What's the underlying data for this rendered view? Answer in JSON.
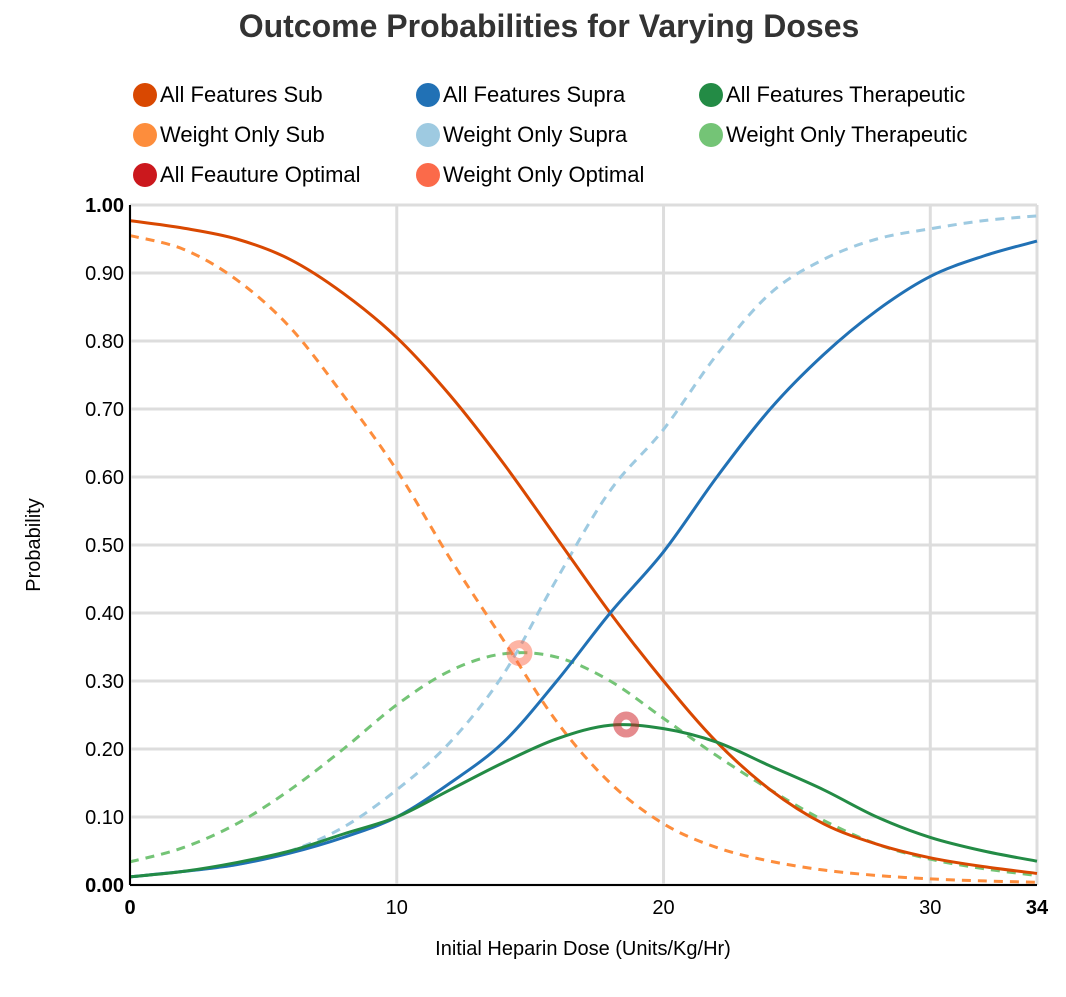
{
  "chart_data": {
    "type": "line",
    "title": "Outcome Probabilities for Varying Doses",
    "xlabel": "Initial Heparin Dose (Units/Kg/Hr)",
    "ylabel": "Probability",
    "xlim": [
      0,
      34
    ],
    "ylim": [
      0,
      1
    ],
    "x_ticks": [
      {
        "value": 0,
        "label": "0",
        "bold": true
      },
      {
        "value": 10,
        "label": "10",
        "bold": false
      },
      {
        "value": 20,
        "label": "20",
        "bold": false
      },
      {
        "value": 30,
        "label": "30",
        "bold": false
      },
      {
        "value": 34,
        "label": "34",
        "bold": true
      }
    ],
    "y_ticks": [
      {
        "value": 0.0,
        "label": "0.00",
        "bold": true
      },
      {
        "value": 0.1,
        "label": "0.10",
        "bold": false
      },
      {
        "value": 0.2,
        "label": "0.20",
        "bold": false
      },
      {
        "value": 0.3,
        "label": "0.30",
        "bold": false
      },
      {
        "value": 0.4,
        "label": "0.40",
        "bold": false
      },
      {
        "value": 0.5,
        "label": "0.50",
        "bold": false
      },
      {
        "value": 0.6,
        "label": "0.60",
        "bold": false
      },
      {
        "value": 0.7,
        "label": "0.70",
        "bold": false
      },
      {
        "value": 0.8,
        "label": "0.80",
        "bold": false
      },
      {
        "value": 0.9,
        "label": "0.90",
        "bold": false
      },
      {
        "value": 1.0,
        "label": "1.00",
        "bold": true
      }
    ],
    "grid": true,
    "legend_position": "top",
    "legend": [
      {
        "label": "All Features Sub",
        "color": "#d94801"
      },
      {
        "label": "All Features Supra",
        "color": "#2171b5"
      },
      {
        "label": "All Features Therapeutic",
        "color": "#238b45"
      },
      {
        "label": "Weight Only Sub",
        "color": "#fd8d3c"
      },
      {
        "label": "Weight Only Supra",
        "color": "#9ecae1"
      },
      {
        "label": "Weight Only Therapeutic",
        "color": "#74c476"
      },
      {
        "label": "All Feauture Optimal",
        "color": "#cb181d"
      },
      {
        "label": "Weight Only Optimal",
        "color": "#fb6a4a"
      }
    ],
    "series": [
      {
        "name": "All Features Sub",
        "color": "#d94801",
        "dashed": false,
        "x": [
          0,
          2,
          4,
          6,
          8,
          10,
          12,
          14,
          16,
          18,
          20,
          22,
          24,
          26,
          28,
          30,
          32,
          34
        ],
        "y": [
          0.977,
          0.966,
          0.95,
          0.92,
          0.87,
          0.805,
          0.72,
          0.62,
          0.51,
          0.4,
          0.3,
          0.21,
          0.14,
          0.09,
          0.06,
          0.04,
          0.027,
          0.017
        ]
      },
      {
        "name": "All Features Supra",
        "color": "#2171b5",
        "dashed": false,
        "x": [
          0,
          2,
          4,
          6,
          8,
          10,
          12,
          14,
          16,
          18,
          20,
          22,
          24,
          26,
          28,
          30,
          32,
          34
        ],
        "y": [
          0.012,
          0.02,
          0.03,
          0.047,
          0.07,
          0.1,
          0.15,
          0.21,
          0.3,
          0.4,
          0.49,
          0.6,
          0.7,
          0.78,
          0.845,
          0.895,
          0.925,
          0.947
        ]
      },
      {
        "name": "All Features Therapeutic",
        "color": "#238b45",
        "dashed": false,
        "x": [
          0,
          2,
          4,
          6,
          8,
          10,
          12,
          14,
          16,
          18,
          20,
          22,
          24,
          26,
          28,
          30,
          32,
          34
        ],
        "y": [
          0.012,
          0.02,
          0.033,
          0.05,
          0.075,
          0.1,
          0.14,
          0.18,
          0.215,
          0.235,
          0.23,
          0.21,
          0.175,
          0.14,
          0.1,
          0.07,
          0.05,
          0.035
        ]
      },
      {
        "name": "Weight Only Sub",
        "color": "#fd8d3c",
        "dashed": true,
        "x": [
          0,
          2,
          4,
          6,
          8,
          10,
          12,
          14,
          16,
          18,
          20,
          22,
          24,
          26,
          28,
          30,
          32,
          34
        ],
        "y": [
          0.955,
          0.935,
          0.89,
          0.82,
          0.72,
          0.61,
          0.48,
          0.36,
          0.24,
          0.15,
          0.09,
          0.055,
          0.035,
          0.022,
          0.014,
          0.009,
          0.006,
          0.004
        ]
      },
      {
        "name": "Weight Only Supra",
        "color": "#9ecae1",
        "dashed": true,
        "x": [
          0,
          2,
          4,
          6,
          8,
          10,
          12,
          14,
          16,
          18,
          20,
          22,
          24,
          26,
          28,
          30,
          32,
          34
        ],
        "y": [
          0.012,
          0.02,
          0.03,
          0.05,
          0.085,
          0.14,
          0.21,
          0.31,
          0.45,
          0.58,
          0.67,
          0.78,
          0.87,
          0.92,
          0.95,
          0.965,
          0.977,
          0.984
        ]
      },
      {
        "name": "Weight Only Therapeutic",
        "color": "#74c476",
        "dashed": true,
        "x": [
          0,
          2,
          4,
          6,
          8,
          10,
          12,
          14,
          16,
          18,
          20,
          22,
          24,
          26,
          28,
          30,
          32,
          34
        ],
        "y": [
          0.034,
          0.055,
          0.09,
          0.14,
          0.2,
          0.265,
          0.315,
          0.34,
          0.335,
          0.3,
          0.245,
          0.19,
          0.14,
          0.095,
          0.06,
          0.038,
          0.024,
          0.014
        ]
      }
    ],
    "points": [
      {
        "name": "All Feauture Optimal",
        "x": 18.6,
        "y": 0.236,
        "color": "#cb181d"
      },
      {
        "name": "Weight Only Optimal",
        "x": 14.6,
        "y": 0.341,
        "color": "#fb6a4a"
      }
    ]
  }
}
